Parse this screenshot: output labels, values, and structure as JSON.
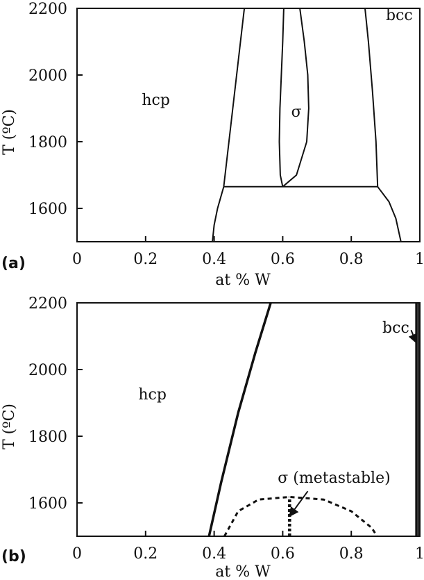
{
  "chart_data": [
    {
      "panel_label": "(a)",
      "type": "line",
      "xlabel": "at % W",
      "ylabel": "T (ºC)",
      "xlim": [
        0,
        1
      ],
      "ylim": [
        1500,
        2200
      ],
      "x_ticks": [
        "0",
        "0.2",
        "0.4",
        "0.6",
        "0.8",
        "1"
      ],
      "y_ticks": [
        "1600",
        "1800",
        "2000",
        "2200"
      ],
      "grid": false,
      "region_labels": [
        {
          "text": "hcp",
          "x": 0.23,
          "y": 1910
        },
        {
          "text": "σ",
          "x": 0.64,
          "y": 1875
        },
        {
          "text": "bcc",
          "x": 0.94,
          "y": 2165
        }
      ],
      "series": [
        {
          "style": "solid",
          "points": [
            [
              0.395,
              1500
            ],
            [
              0.4,
              1550
            ],
            [
              0.41,
              1600
            ],
            [
              0.428,
              1665
            ]
          ]
        },
        {
          "style": "solid",
          "points": [
            [
              0.428,
              1665
            ],
            [
              0.488,
              2200
            ]
          ]
        },
        {
          "style": "solid",
          "points": [
            [
              0.428,
              1665
            ],
            [
              0.877,
              1665
            ]
          ]
        },
        {
          "style": "solid",
          "points": [
            [
              0.6,
              1665
            ],
            [
              0.593,
              1700
            ],
            [
              0.59,
              1800
            ],
            [
              0.592,
              1900
            ],
            [
              0.596,
              2000
            ],
            [
              0.6,
              2100
            ],
            [
              0.603,
              2200
            ]
          ]
        },
        {
          "style": "solid",
          "points": [
            [
              0.6,
              1665
            ],
            [
              0.64,
              1700
            ],
            [
              0.67,
              1800
            ],
            [
              0.676,
              1900
            ],
            [
              0.673,
              2000
            ],
            [
              0.663,
              2100
            ],
            [
              0.65,
              2200
            ]
          ]
        },
        {
          "style": "solid",
          "points": [
            [
              0.877,
              1665
            ],
            [
              0.872,
              1800
            ],
            [
              0.862,
              1950
            ],
            [
              0.85,
              2100
            ],
            [
              0.84,
              2200
            ]
          ]
        },
        {
          "style": "solid",
          "points": [
            [
              0.877,
              1665
            ],
            [
              0.91,
              1620
            ],
            [
              0.93,
              1570
            ],
            [
              0.945,
              1500
            ]
          ]
        }
      ]
    },
    {
      "panel_label": "(b)",
      "type": "line",
      "xlabel": "at % W",
      "ylabel": "T (ºC)",
      "xlim": [
        0,
        1
      ],
      "ylim": [
        1500,
        2200
      ],
      "x_ticks": [
        "0",
        "0.2",
        "0.4",
        "0.6",
        "0.8",
        "1"
      ],
      "y_ticks": [
        "1600",
        "1800",
        "2000",
        "2200"
      ],
      "grid": false,
      "region_labels": [
        {
          "text": "hcp",
          "x": 0.22,
          "y": 1910
        },
        {
          "text": "bcc",
          "x": 0.93,
          "y": 2110
        },
        {
          "text": "σ (metastable)",
          "x": 0.75,
          "y": 1660
        }
      ],
      "series": [
        {
          "style": "thick",
          "points": [
            [
              0.385,
              1500
            ],
            [
              0.42,
              1660
            ],
            [
              0.47,
              1870
            ],
            [
              0.52,
              2050
            ],
            [
              0.565,
              2200
            ]
          ]
        },
        {
          "style": "thick",
          "points": [
            [
              0.99,
              1500
            ],
            [
              0.99,
              2200
            ]
          ]
        },
        {
          "style": "thick",
          "points": [
            [
              0.998,
              1500
            ],
            [
              0.998,
              2200
            ]
          ]
        },
        {
          "style": "dashed",
          "points": [
            [
              0.43,
              1500
            ],
            [
              0.47,
              1575
            ],
            [
              0.53,
              1610
            ],
            [
              0.62,
              1618
            ],
            [
              0.72,
              1610
            ],
            [
              0.8,
              1575
            ],
            [
              0.86,
              1525
            ],
            [
              0.875,
              1500
            ]
          ]
        },
        {
          "style": "thick-dashed",
          "points": [
            [
              0.62,
              1500
            ],
            [
              0.62,
              1618
            ]
          ]
        }
      ],
      "annotations": [
        {
          "text": "σ (metastable)",
          "arrow_to": [
            0.62,
            1560
          ]
        },
        {
          "text": "bcc",
          "arrow_to": [
            0.99,
            2080
          ]
        }
      ]
    }
  ]
}
